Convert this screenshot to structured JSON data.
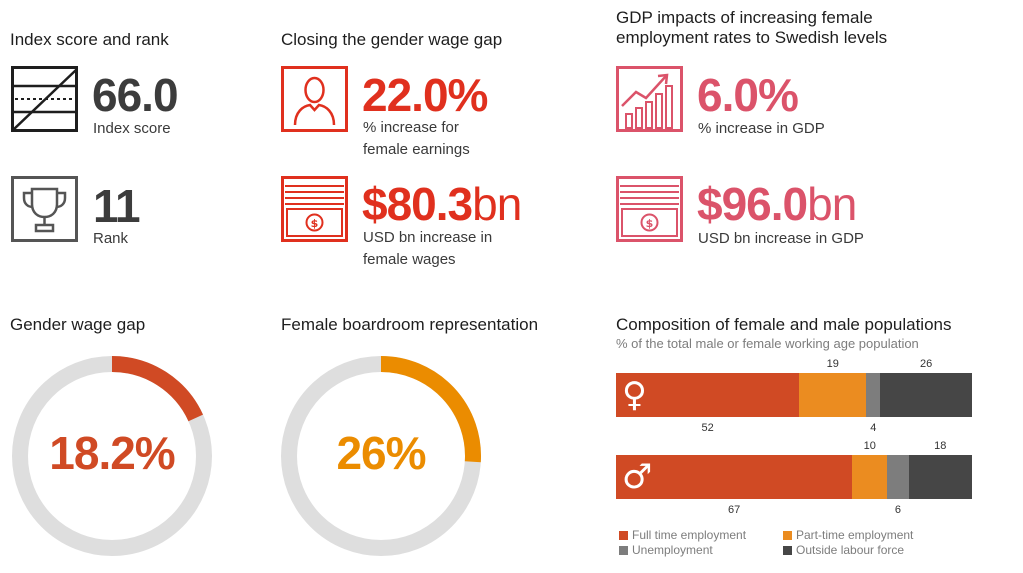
{
  "colors": {
    "dark": "#3c3c3c",
    "red": "#e0301e",
    "pink": "#db536a",
    "donut_bg": "#dedede",
    "wage_gap": "#d04a24",
    "boardroom": "#eb8c00",
    "full_time": "#d04a24",
    "part_time": "#eb8c20",
    "unemployment": "#7d7d7d",
    "outside": "#464646"
  },
  "index": {
    "title": "Index score and rank",
    "score_value": "66.0",
    "score_label": "Index score",
    "rank_value": "11",
    "rank_label": "Rank",
    "score_icon": "index-chart-icon",
    "rank_icon": "trophy-icon"
  },
  "wage_gap_closing": {
    "title": "Closing the gender wage gap",
    "earnings_value": "22.0%",
    "earnings_label_1": "% increase for",
    "earnings_label_2": "female earnings",
    "wages_prefix": "$",
    "wages_number": "80.3",
    "wages_unit": "bn",
    "wages_label_1": "USD bn increase in",
    "wages_label_2": "female wages",
    "person_icon": "person-icon",
    "money_icon": "banknote-icon"
  },
  "gdp": {
    "title_1": "GDP impacts of increasing female",
    "title_2": "employment rates to Swedish levels",
    "pct_value": "6.0%",
    "pct_label": "% increase in GDP",
    "usd_prefix": "$",
    "usd_number": "96.0",
    "usd_unit": "bn",
    "usd_label": "USD bn increase in GDP",
    "growth_icon": "growth-chart-icon",
    "money_icon": "banknote-icon"
  },
  "chart_data": [
    {
      "type": "pie",
      "title": "Gender wage gap",
      "center_label": "18.2%",
      "values": [
        18.2
      ],
      "max": 100,
      "color": "#d04a24"
    },
    {
      "type": "pie",
      "title": "Female boardroom representation",
      "center_label": "26%",
      "values": [
        26
      ],
      "max": 100,
      "color": "#eb8c00"
    },
    {
      "type": "bar",
      "orientation": "horizontal-stacked",
      "title": "Composition of female and male populations",
      "subtitle": "% of the total male or female working age population",
      "categories": [
        "female",
        "male"
      ],
      "category_symbols": [
        "♀",
        "♂"
      ],
      "series": [
        {
          "name": "Full time employment",
          "values": [
            52,
            67
          ],
          "label_position": "below",
          "color": "#d04a24"
        },
        {
          "name": "Part-time employment",
          "values": [
            19,
            10
          ],
          "label_position": "above",
          "color": "#eb8c20"
        },
        {
          "name": "Unemployment",
          "values": [
            4,
            6
          ],
          "label_position": "below",
          "color": "#7d7d7d"
        },
        {
          "name": "Outside labour force",
          "values": [
            26,
            18
          ],
          "label_position": "above",
          "color": "#464646"
        }
      ],
      "legend_placement": "bottom"
    }
  ]
}
